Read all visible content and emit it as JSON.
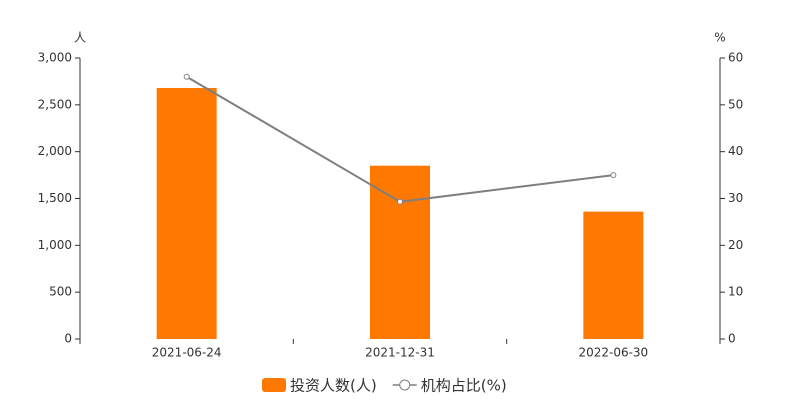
{
  "chart_data": {
    "type": "bar",
    "categories": [
      "2021-06-24",
      "2021-12-31",
      "2022-06-30"
    ],
    "series": [
      {
        "name": "投资人数(人)",
        "color": "#ff7800",
        "type": "bar",
        "values": [
          2680,
          1850,
          1360
        ]
      },
      {
        "name": "机构占比(%)",
        "color": "#7f7f7f",
        "type": "line",
        "axis": "y2",
        "values": [
          56,
          29.3,
          35
        ]
      }
    ],
    "ylabel": "人",
    "y2label": "%",
    "ylim": [
      0,
      3000
    ],
    "yticks": [
      0,
      500,
      {
        "value": 1000,
        "label": "1,000"
      },
      {
        "value": 1500,
        "label": "1,500"
      },
      {
        "value": 2000,
        "label": "2,000"
      },
      {
        "value": 2500,
        "label": "2,500"
      },
      {
        "value": 3000,
        "label": "3,000"
      }
    ],
    "y2lim": [
      0,
      60
    ],
    "y2ticks": [
      0,
      10,
      20,
      30,
      40,
      50,
      60
    ],
    "grid": false
  }
}
